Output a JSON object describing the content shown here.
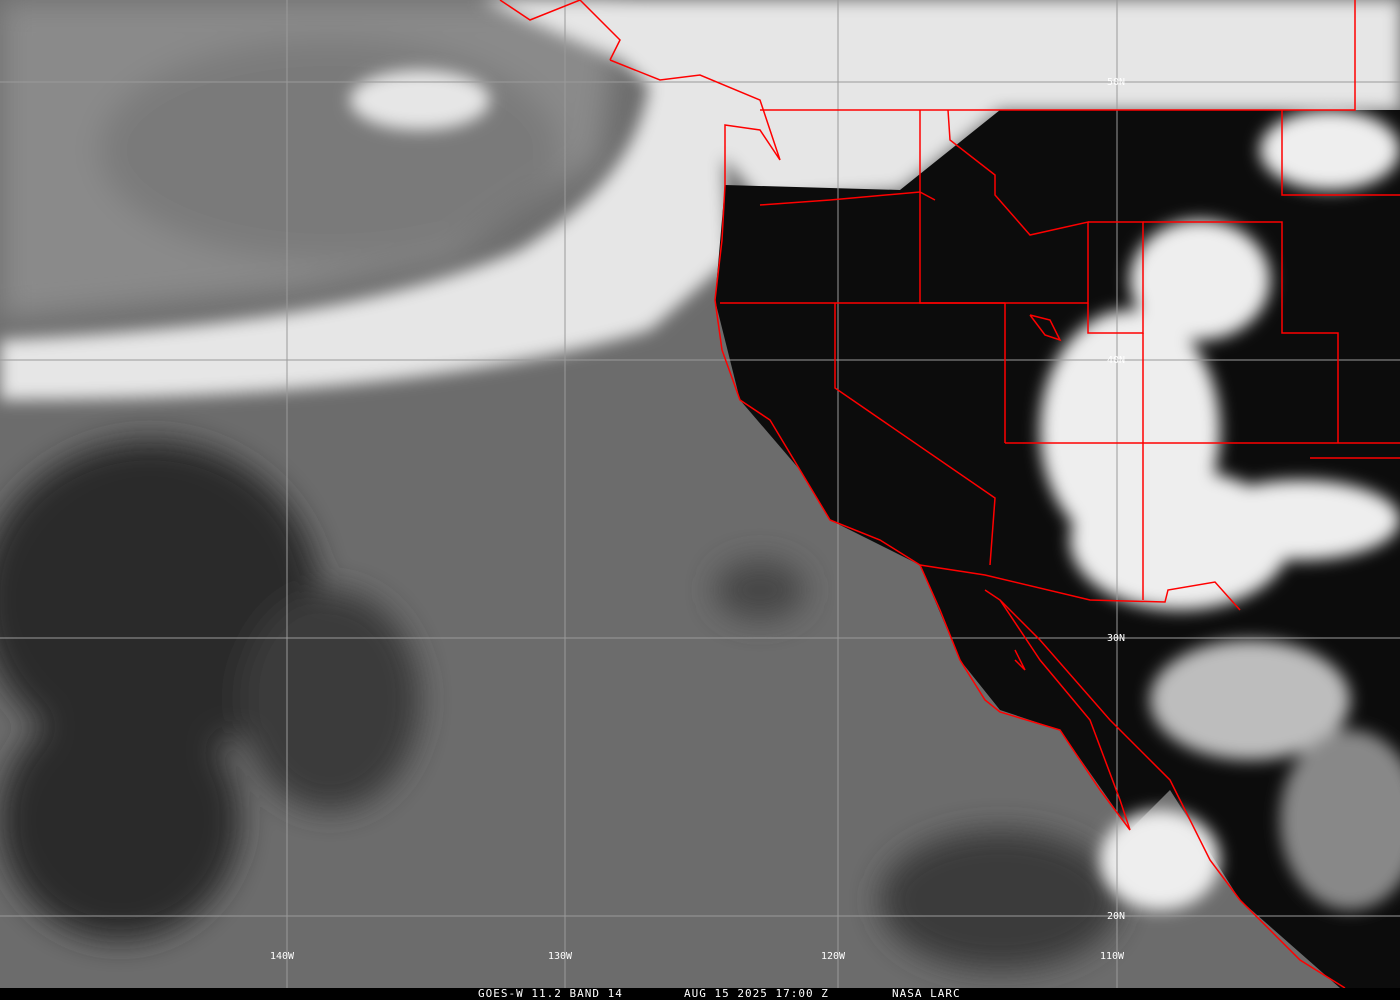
{
  "caption": {
    "product": "GOES-W 11.2 BAND 14",
    "datetime": "AUG 15 2025 17:00 Z",
    "credit": "NASA LARC"
  },
  "grid": {
    "latitudes": [
      "50N",
      "40N",
      "30N",
      "20N"
    ],
    "longitudes": [
      "140W",
      "130W",
      "120W",
      "110W"
    ]
  },
  "colors": {
    "borders": "#ff0000",
    "gridlines": "#9a9a9a",
    "ocean": "#6c6c6c",
    "land": "#0a0a0a",
    "clouds": "#f2f2f2"
  }
}
